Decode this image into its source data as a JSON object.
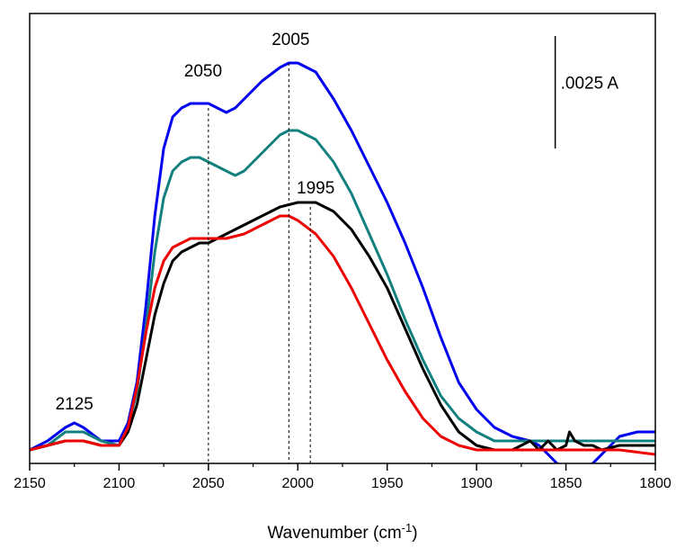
{
  "chart_data": {
    "type": "line",
    "xlabel": "Wavenumber (cm",
    "xlabel_sup": "-1",
    "xlabel_tail": ")",
    "ylabel": "",
    "xlim": [
      2150,
      1800
    ],
    "ylim": [
      -0.0003,
      0.0097
    ],
    "x_ticks": [
      2150,
      2100,
      2050,
      2000,
      1950,
      1900,
      1850,
      1800
    ],
    "x_tick_labels": [
      "2150",
      "2100",
      "2050",
      "2000",
      "1950",
      "1900",
      "1850",
      "1800"
    ],
    "grid": false,
    "legend": "none",
    "scale_bar": {
      "label": ".0025 A",
      "x": 1856,
      "y_top": 0.0092,
      "y_bottom": 0.0067
    },
    "reference_lines": [
      {
        "x": 2050,
        "y_top": 0.0076
      },
      {
        "x": 2005,
        "y_top": 0.0086
      },
      {
        "x": 1993,
        "y_top": 0.0054
      }
    ],
    "annotations": [
      {
        "text": "2005",
        "x": 2004,
        "y": 0.009
      },
      {
        "text": "2050",
        "x": 2053,
        "y": 0.0083
      },
      {
        "text": "1995",
        "x": 1990,
        "y": 0.0057
      },
      {
        "text": "2125",
        "x": 2125,
        "y": 0.0009
      }
    ],
    "series": [
      {
        "color": "#0000ee",
        "x": [
          2150,
          2140,
          2130,
          2125,
          2120,
          2110,
          2100,
          2095,
          2090,
          2085,
          2080,
          2075,
          2070,
          2065,
          2060,
          2055,
          2050,
          2045,
          2040,
          2035,
          2030,
          2020,
          2010,
          2005,
          2000,
          1990,
          1980,
          1970,
          1960,
          1950,
          1940,
          1930,
          1920,
          1910,
          1900,
          1890,
          1880,
          1870,
          1865,
          1860,
          1855,
          1850,
          1845,
          1840,
          1835,
          1830,
          1820,
          1810,
          1800
        ],
        "y": [
          0.0,
          0.0002,
          0.0005,
          0.0006,
          0.0005,
          0.0002,
          0.0002,
          0.0006,
          0.0015,
          0.0032,
          0.0052,
          0.0067,
          0.0074,
          0.0076,
          0.0077,
          0.0077,
          0.0077,
          0.0076,
          0.0075,
          0.0076,
          0.0078,
          0.0082,
          0.0085,
          0.0086,
          0.0086,
          0.0084,
          0.0078,
          0.0071,
          0.0063,
          0.0055,
          0.0046,
          0.0036,
          0.0025,
          0.0015,
          0.0009,
          0.0005,
          0.0003,
          0.0002,
          0.0001,
          -0.0001,
          -0.0003,
          -0.0004,
          -0.0004,
          -0.0004,
          -0.0003,
          -0.0001,
          0.0003,
          0.0004,
          0.0004
        ]
      },
      {
        "color": "#138080",
        "x": [
          2150,
          2140,
          2130,
          2125,
          2120,
          2110,
          2100,
          2095,
          2090,
          2085,
          2080,
          2075,
          2070,
          2065,
          2060,
          2055,
          2050,
          2045,
          2040,
          2035,
          2030,
          2020,
          2010,
          2005,
          2000,
          1990,
          1980,
          1970,
          1960,
          1950,
          1940,
          1930,
          1920,
          1910,
          1900,
          1890,
          1880,
          1870,
          1860,
          1850,
          1840,
          1830,
          1820,
          1810,
          1800
        ],
        "y": [
          0.0,
          0.0001,
          0.0004,
          0.0004,
          0.0004,
          0.0002,
          0.0001,
          0.0005,
          0.0013,
          0.0027,
          0.0044,
          0.0056,
          0.0062,
          0.0064,
          0.0065,
          0.0065,
          0.0064,
          0.0063,
          0.0062,
          0.0061,
          0.0062,
          0.0066,
          0.007,
          0.0071,
          0.0071,
          0.0069,
          0.0064,
          0.0057,
          0.0048,
          0.0039,
          0.0029,
          0.002,
          0.0012,
          0.0007,
          0.0004,
          0.0002,
          0.0002,
          0.0002,
          0.0002,
          0.0002,
          0.0002,
          0.0002,
          0.0002,
          0.0002,
          0.0002
        ]
      },
      {
        "color": "#000000",
        "x": [
          2150,
          2140,
          2130,
          2120,
          2110,
          2100,
          2095,
          2090,
          2085,
          2080,
          2075,
          2070,
          2065,
          2060,
          2055,
          2050,
          2045,
          2040,
          2035,
          2030,
          2020,
          2010,
          2000,
          1995,
          1990,
          1980,
          1970,
          1960,
          1950,
          1940,
          1930,
          1920,
          1910,
          1900,
          1890,
          1880,
          1875,
          1870,
          1865,
          1860,
          1855,
          1850,
          1848,
          1845,
          1840,
          1835,
          1830,
          1820,
          1810,
          1800
        ],
        "y": [
          0.0,
          0.0001,
          0.0002,
          0.0002,
          0.0001,
          0.0001,
          0.0004,
          0.001,
          0.002,
          0.003,
          0.0037,
          0.0042,
          0.0044,
          0.0045,
          0.0046,
          0.0046,
          0.0047,
          0.0048,
          0.0049,
          0.005,
          0.0052,
          0.0054,
          0.0055,
          0.0055,
          0.0055,
          0.0053,
          0.0049,
          0.0043,
          0.0036,
          0.0027,
          0.0018,
          0.001,
          0.0004,
          0.0001,
          0.0,
          0.0,
          0.0001,
          0.0002,
          0.0,
          0.0002,
          0.0,
          0.0001,
          0.0004,
          0.0002,
          0.0001,
          0.0001,
          0.0,
          0.0001,
          0.0001,
          0.0001
        ]
      },
      {
        "color": "#ee0000",
        "x": [
          2150,
          2140,
          2130,
          2120,
          2110,
          2100,
          2095,
          2090,
          2085,
          2080,
          2075,
          2070,
          2065,
          2060,
          2055,
          2050,
          2040,
          2030,
          2020,
          2010,
          2005,
          2000,
          1990,
          1980,
          1970,
          1960,
          1950,
          1940,
          1930,
          1920,
          1910,
          1900,
          1890,
          1880,
          1860,
          1840,
          1820,
          1800
        ],
        "y": [
          0.0,
          0.0001,
          0.0002,
          0.0002,
          0.0001,
          0.0001,
          0.0005,
          0.0014,
          0.0026,
          0.0036,
          0.0042,
          0.0045,
          0.0046,
          0.0047,
          0.0047,
          0.0047,
          0.0047,
          0.0048,
          0.005,
          0.0052,
          0.0052,
          0.0051,
          0.0048,
          0.0043,
          0.0036,
          0.0028,
          0.002,
          0.0013,
          0.0007,
          0.0003,
          0.0001,
          0.0,
          0.0,
          0.0,
          0.0,
          0.0,
          0.0,
          -0.0001
        ]
      }
    ]
  }
}
